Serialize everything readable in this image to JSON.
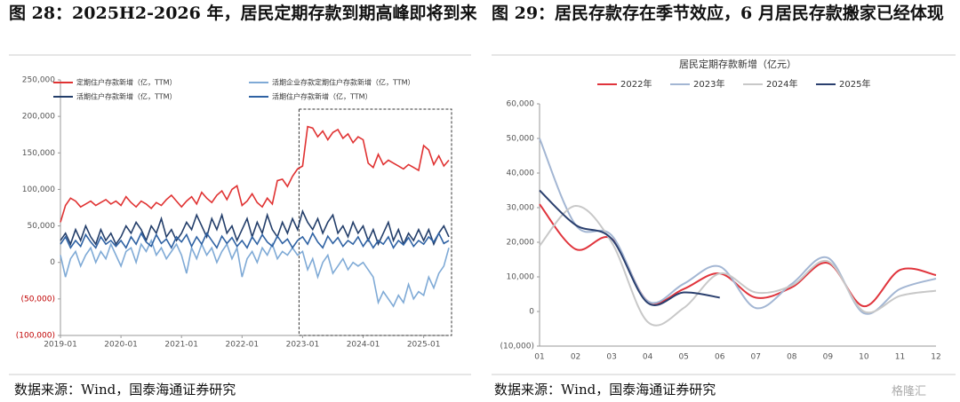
{
  "headings": [
    "图 28：2025H2-2026 年，居民定期存款到期高峰即将到来",
    "图 29：居民存款存在季节效应，6 月居民存款搬家已经体现"
  ],
  "sources": [
    "数据来源：Wind，国泰海通证券研究",
    "数据来源：Wind，国泰海通证券研究"
  ],
  "watermark": "格隆汇",
  "chart_data": [
    {
      "type": "line",
      "legend": "top-left-two-columns",
      "negative_label_color": "#c00000",
      "x": [
        "2019-01",
        "2019-02",
        "2019-03",
        "2019-04",
        "2019-05",
        "2019-06",
        "2019-07",
        "2019-08",
        "2019-09",
        "2019-10",
        "2019-11",
        "2019-12",
        "2020-01",
        "2020-02",
        "2020-03",
        "2020-04",
        "2020-05",
        "2020-06",
        "2020-07",
        "2020-08",
        "2020-09",
        "2020-10",
        "2020-11",
        "2020-12",
        "2021-01",
        "2021-02",
        "2021-03",
        "2021-04",
        "2021-05",
        "2021-06",
        "2021-07",
        "2021-08",
        "2021-09",
        "2021-10",
        "2021-11",
        "2021-12",
        "2022-01",
        "2022-02",
        "2022-03",
        "2022-04",
        "2022-05",
        "2022-06",
        "2022-07",
        "2022-08",
        "2022-09",
        "2022-10",
        "2022-11",
        "2022-12",
        "2023-01",
        "2023-02",
        "2023-03",
        "2023-04",
        "2023-05",
        "2023-06",
        "2023-07",
        "2023-08",
        "2023-09",
        "2023-10",
        "2023-11",
        "2023-12",
        "2024-01",
        "2024-02",
        "2024-03",
        "2024-04",
        "2024-05",
        "2024-06",
        "2024-07",
        "2024-08",
        "2024-09",
        "2024-10",
        "2024-11",
        "2024-12",
        "2025-01",
        "2025-02",
        "2025-03",
        "2025-04",
        "2025-05",
        "2025-06"
      ],
      "xticks": [
        "2019-01",
        "2020-01",
        "2021-01",
        "2022-01",
        "2023-01",
        "2024-01",
        "2025-01"
      ],
      "highlight": [
        "2023-01",
        "2025-06"
      ],
      "ylim": [
        -100000,
        250000
      ],
      "yticks": [
        {
          "value": -100000,
          "label": "(100,000)"
        },
        {
          "value": -50000,
          "label": "(50,000)"
        },
        0,
        {
          "value": 50000,
          "label": "50,000"
        },
        {
          "value": 100000,
          "label": "100,000"
        },
        {
          "value": 150000,
          "label": "150,000"
        },
        {
          "value": 200000,
          "label": "200,000"
        },
        {
          "value": 250000,
          "label": "250,000"
        }
      ],
      "series": [
        {
          "name": "定期住户存款新增（亿，TTM）",
          "color": "#e03232",
          "values": [
            55000,
            78000,
            88000,
            84000,
            76000,
            80000,
            84000,
            78000,
            82000,
            86000,
            80000,
            84000,
            78000,
            90000,
            82000,
            76000,
            84000,
            80000,
            74000,
            82000,
            78000,
            86000,
            92000,
            84000,
            76000,
            84000,
            90000,
            80000,
            96000,
            88000,
            82000,
            92000,
            98000,
            86000,
            100000,
            105000,
            78000,
            84000,
            94000,
            82000,
            76000,
            88000,
            80000,
            112000,
            114000,
            104000,
            118000,
            128000,
            132000,
            186000,
            184000,
            172000,
            180000,
            168000,
            178000,
            182000,
            170000,
            176000,
            164000,
            172000,
            168000,
            136000,
            130000,
            148000,
            134000,
            140000,
            136000,
            132000,
            128000,
            134000,
            130000,
            126000,
            160000,
            154000,
            134000,
            146000,
            132000,
            140000
          ]
        },
        {
          "name": "活期企业存款定期住户存款新增（亿，TTM）",
          "color": "#7faad6",
          "values": [
            10000,
            -20000,
            5000,
            15000,
            -5000,
            10000,
            20000,
            0,
            15000,
            5000,
            25000,
            10000,
            -5000,
            15000,
            20000,
            0,
            25000,
            15000,
            30000,
            10000,
            20000,
            5000,
            15000,
            25000,
            10000,
            -15000,
            20000,
            5000,
            25000,
            10000,
            20000,
            0,
            15000,
            25000,
            5000,
            20000,
            -20000,
            5000,
            15000,
            0,
            20000,
            10000,
            25000,
            5000,
            15000,
            10000,
            20000,
            10000,
            15000,
            -10000,
            5000,
            -20000,
            0,
            10000,
            -15000,
            -5000,
            5000,
            -10000,
            0,
            -5000,
            0,
            -10000,
            -20000,
            -55000,
            -40000,
            -50000,
            -60000,
            -45000,
            -55000,
            -30000,
            -50000,
            -40000,
            -45000,
            -20000,
            -35000,
            -15000,
            -5000,
            20000
          ]
        },
        {
          "name": "活期住户存款新增（亿，TTM）",
          "color": "#233e6a",
          "values": [
            30000,
            40000,
            25000,
            45000,
            30000,
            50000,
            35000,
            25000,
            45000,
            30000,
            40000,
            25000,
            35000,
            50000,
            40000,
            55000,
            45000,
            30000,
            50000,
            40000,
            60000,
            35000,
            45000,
            30000,
            40000,
            55000,
            45000,
            65000,
            50000,
            35000,
            60000,
            45000,
            65000,
            40000,
            50000,
            30000,
            45000,
            60000,
            35000,
            55000,
            40000,
            65000,
            45000,
            35000,
            55000,
            40000,
            60000,
            45000,
            70000,
            55000,
            45000,
            60000,
            40000,
            55000,
            65000,
            40000,
            50000,
            35000,
            55000,
            40000,
            50000,
            30000,
            45000,
            25000,
            40000,
            55000,
            30000,
            45000,
            25000,
            40000,
            30000,
            45000,
            30000,
            45000,
            25000,
            40000,
            50000,
            35000
          ]
        },
        {
          "name": "活期住户存款新增（亿，TTM）",
          "color": "#2f62a3",
          "values": [
            25000,
            35000,
            20000,
            30000,
            22000,
            38000,
            28000,
            20000,
            35000,
            25000,
            30000,
            22000,
            30000,
            20000,
            35000,
            25000,
            40000,
            28000,
            22000,
            38000,
            26000,
            32000,
            20000,
            35000,
            28000,
            38000,
            22000,
            35000,
            25000,
            40000,
            30000,
            20000,
            36000,
            26000,
            34000,
            22000,
            30000,
            20000,
            35000,
            25000,
            38000,
            28000,
            22000,
            36000,
            26000,
            32000,
            20000,
            30000,
            35000,
            25000,
            40000,
            28000,
            20000,
            36000,
            26000,
            34000,
            22000,
            30000,
            25000,
            35000,
            22000,
            32000,
            20000,
            30000,
            25000,
            35000,
            20000,
            30000,
            24000,
            34000,
            22000,
            30000,
            25000,
            35000,
            28000,
            40000,
            26000,
            30000
          ]
        }
      ]
    },
    {
      "type": "line",
      "smooth": true,
      "legend": "top",
      "title": "居民定期存款新增（亿元）",
      "categories": [
        "01",
        "02",
        "03",
        "04",
        "05",
        "06",
        "07",
        "08",
        "09",
        "10",
        "11",
        "12"
      ],
      "ylim": [
        -10000,
        60000
      ],
      "yticks": [
        {
          "value": -10000,
          "label": "(10,000)"
        },
        0,
        {
          "value": 10000,
          "label": "10,000"
        },
        {
          "value": 20000,
          "label": "20,000"
        },
        {
          "value": 30000,
          "label": "30,000"
        },
        {
          "value": 40000,
          "label": "40,000"
        },
        {
          "value": 50000,
          "label": "50,000"
        },
        {
          "value": 60000,
          "label": "60,000"
        }
      ],
      "series": [
        {
          "name": "2022年",
          "color": "#e0343c",
          "values": [
            31000,
            18000,
            21000,
            3000,
            6500,
            11000,
            4000,
            7000,
            14000,
            1500,
            12000,
            10500
          ]
        },
        {
          "name": "2023年",
          "color": "#a3b6d3",
          "values": [
            50000,
            25000,
            22000,
            3000,
            8000,
            13000,
            1000,
            8000,
            15500,
            -500,
            6500,
            9500
          ]
        },
        {
          "name": "2024年",
          "color": "#c8c8c8",
          "values": [
            19000,
            30500,
            20000,
            -3000,
            1000,
            11000,
            5500,
            7500,
            14500,
            0,
            4500,
            6000
          ]
        },
        {
          "name": "2025年",
          "color": "#2a3f6e",
          "values": [
            35000,
            25000,
            21000,
            2500,
            5500,
            4000,
            null,
            null,
            null,
            null,
            null,
            null
          ]
        }
      ]
    }
  ]
}
